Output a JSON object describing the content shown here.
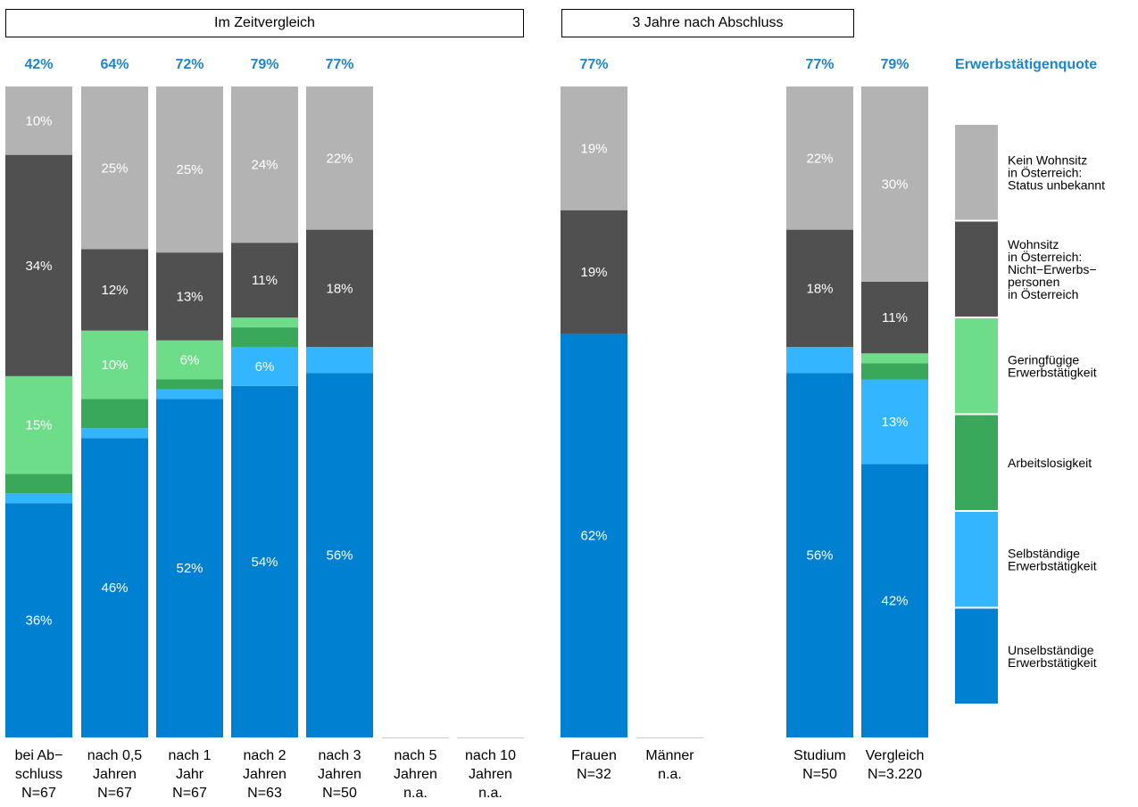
{
  "panels": [
    {
      "title": "Im Zeitvergleich"
    },
    {
      "title": "3 Jahre nach Abschluss"
    }
  ],
  "chart_data": {
    "type": "bar",
    "stacked": true,
    "unit": "%",
    "colors": {
      "unselbstaendig": "#0080d0",
      "selbstaendig": "#33b5ff",
      "arbeitslos": "#3aa85a",
      "geringfuegig": "#6edd8a",
      "nicht_erwerb": "#505050",
      "kein_wohnsitz": "#b3b3b3"
    },
    "legend": {
      "title": "Erwerbstätigenquote",
      "items": [
        {
          "key": "kein_wohnsitz",
          "lines": [
            "Kein Wohnsitz",
            "in Österreich:",
            "Status unbekannt"
          ]
        },
        {
          "key": "nicht_erwerb",
          "lines": [
            "Wohnsitz",
            "in Österreich:",
            "Nicht−Erwerbs−",
            "personen",
            "in Österreich"
          ]
        },
        {
          "key": "geringfuegig",
          "lines": [
            "Geringfügige",
            "Erwerbstätigkeit"
          ]
        },
        {
          "key": "arbeitslos",
          "lines": [
            "Arbeitslosigkeit"
          ]
        },
        {
          "key": "selbstaendig",
          "lines": [
            "Selbständige",
            "Erwerbstätigkeit"
          ]
        },
        {
          "key": "unselbstaendig",
          "lines": [
            "Unselbständige",
            "Erwerbstätigkeit"
          ]
        }
      ]
    },
    "bars": [
      {
        "label": [
          "bei Ab−",
          "schluss",
          "N=67"
        ],
        "rate": "42%",
        "values": {
          "unselbstaendig": 36,
          "selbstaendig": 1.5,
          "arbeitslos": 3,
          "geringfuegig": 15,
          "nicht_erwerb": 34,
          "kein_wohnsitz": 10.5
        },
        "labels": {
          "unselbstaendig": "36%",
          "geringfuegig": "15%",
          "nicht_erwerb": "34%",
          "kein_wohnsitz": "10%"
        }
      },
      {
        "label": [
          "nach 0,5",
          "Jahren",
          "N=67"
        ],
        "rate": "64%",
        "values": {
          "unselbstaendig": 46,
          "selbstaendig": 1.5,
          "arbeitslos": 4.5,
          "geringfuegig": 10.5,
          "nicht_erwerb": 12.5,
          "kein_wohnsitz": 25
        },
        "labels": {
          "unselbstaendig": "46%",
          "geringfuegig": "10%",
          "nicht_erwerb": "12%",
          "kein_wohnsitz": "25%"
        }
      },
      {
        "label": [
          "nach 1",
          "Jahr",
          "N=67"
        ],
        "rate": "72%",
        "values": {
          "unselbstaendig": 52,
          "selbstaendig": 1.5,
          "arbeitslos": 1.5,
          "geringfuegig": 6,
          "nicht_erwerb": 13.5,
          "kein_wohnsitz": 25.5
        },
        "labels": {
          "unselbstaendig": "52%",
          "geringfuegig": "6%",
          "nicht_erwerb": "13%",
          "kein_wohnsitz": "25%"
        }
      },
      {
        "label": [
          "nach 2",
          "Jahren",
          "N=63"
        ],
        "rate": "79%",
        "values": {
          "unselbstaendig": 54,
          "selbstaendig": 6,
          "arbeitslos": 3,
          "geringfuegig": 1.5,
          "nicht_erwerb": 11.5,
          "kein_wohnsitz": 24
        },
        "labels": {
          "unselbstaendig": "54%",
          "selbstaendig": "6%",
          "nicht_erwerb": "11%",
          "kein_wohnsitz": "24%"
        }
      },
      {
        "label": [
          "nach 3",
          "Jahren",
          "N=50"
        ],
        "rate": "77%",
        "values": {
          "unselbstaendig": 56,
          "selbstaendig": 4,
          "arbeitslos": 0,
          "geringfuegig": 0,
          "nicht_erwerb": 18,
          "kein_wohnsitz": 22
        },
        "labels": {
          "unselbstaendig": "56%",
          "nicht_erwerb": "18%",
          "kein_wohnsitz": "22%"
        }
      },
      {
        "label": [
          "nach 5",
          "Jahren",
          "n.a."
        ],
        "rate": "",
        "values": {},
        "labels": {}
      },
      {
        "label": [
          "nach 10",
          "Jahren",
          "n.a."
        ],
        "rate": "",
        "values": {},
        "labels": {}
      },
      {
        "label": [
          "Frauen",
          "N=32"
        ],
        "rate": "77%",
        "values": {
          "unselbstaendig": 62,
          "selbstaendig": 0,
          "arbeitslos": 0,
          "geringfuegig": 0,
          "nicht_erwerb": 19,
          "kein_wohnsitz": 19
        },
        "labels": {
          "unselbstaendig": "62%",
          "nicht_erwerb": "19%",
          "kein_wohnsitz": "19%"
        }
      },
      {
        "label": [
          "Männer",
          "n.a."
        ],
        "rate": "",
        "values": {},
        "labels": {}
      },
      {
        "label": [
          "Studium",
          "N=50"
        ],
        "rate": "77%",
        "values": {
          "unselbstaendig": 56,
          "selbstaendig": 4,
          "arbeitslos": 0,
          "geringfuegig": 0,
          "nicht_erwerb": 18,
          "kein_wohnsitz": 22
        },
        "labels": {
          "unselbstaendig": "56%",
          "nicht_erwerb": "18%",
          "kein_wohnsitz": "22%"
        }
      },
      {
        "label": [
          "Vergleich",
          "N=3.220"
        ],
        "rate": "79%",
        "values": {
          "unselbstaendig": 42,
          "selbstaendig": 13,
          "arbeitslos": 2.5,
          "geringfuegig": 1.5,
          "nicht_erwerb": 11,
          "kein_wohnsitz": 30
        },
        "labels": {
          "unselbstaendig": "42%",
          "selbstaendig": "13%",
          "nicht_erwerb": "11%",
          "kein_wohnsitz": "30%"
        }
      }
    ],
    "ylim": [
      0,
      100
    ]
  }
}
